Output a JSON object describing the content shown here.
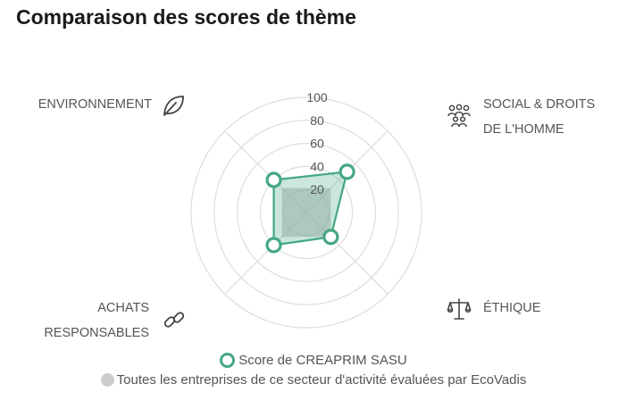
{
  "title": "Comparaison des scores de thème",
  "chart_data": {
    "type": "radar",
    "axes": [
      {
        "key": "env",
        "label_lines": [
          "ENVIRONNEMENT"
        ],
        "icon": "leaf-icon"
      },
      {
        "key": "social",
        "label_lines": [
          "SOCIAL & DROITS",
          "DE L'HOMME"
        ],
        "icon": "people-icon"
      },
      {
        "key": "ethique",
        "label_lines": [
          "ÉTHIQUE"
        ],
        "icon": "scales-icon"
      },
      {
        "key": "achats",
        "label_lines": [
          "ACHATS",
          "RESPONSABLES"
        ],
        "icon": "link-icon"
      }
    ],
    "rlim": [
      0,
      100
    ],
    "ticks": [
      20,
      40,
      60,
      80,
      100
    ],
    "series": [
      {
        "name": "Score de CREAPRIM SASU",
        "values": [
          40,
          50,
          30,
          40
        ],
        "color": "#45a883",
        "style": "outline"
      },
      {
        "name": "Toutes les entreprises de ce secteur d'activité évaluées par EcoVadis",
        "values": [
          30,
          30,
          30,
          30
        ],
        "color": "#cccccc",
        "style": "dot"
      }
    ]
  }
}
